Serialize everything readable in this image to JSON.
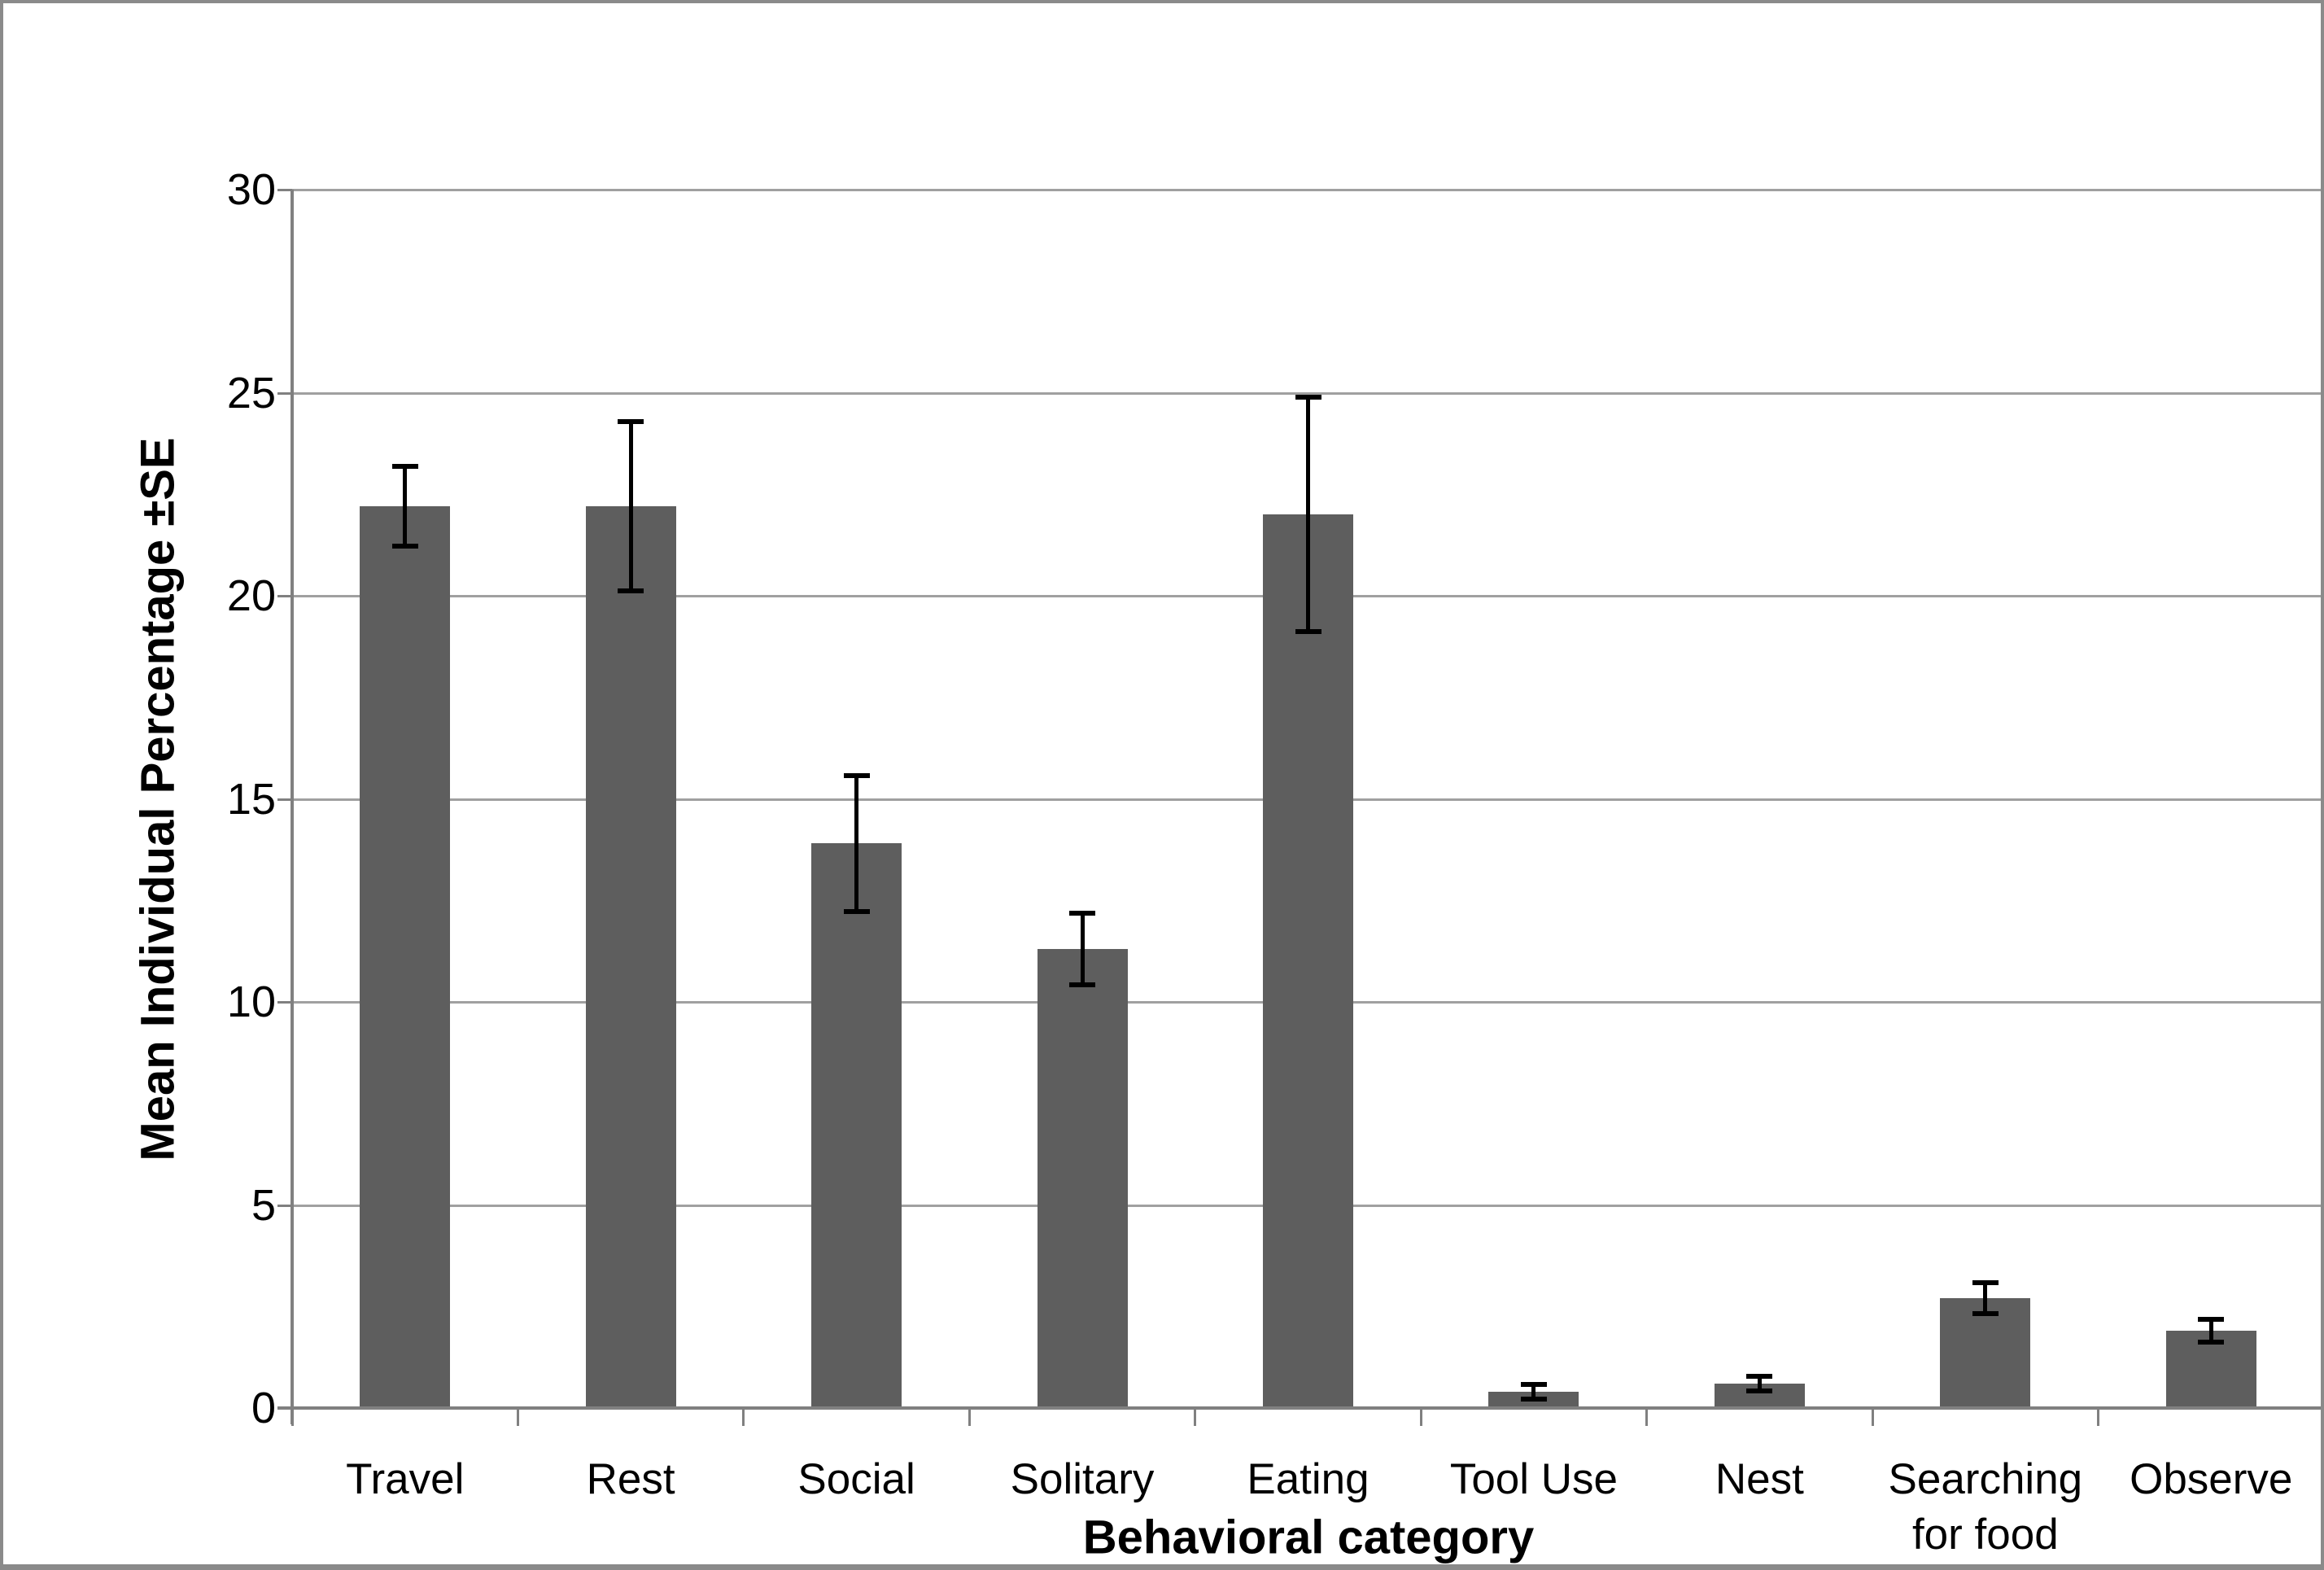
{
  "figure": {
    "background_color": "#ffffff",
    "frame_border_color": "#8a8a8a"
  },
  "chart_data": {
    "type": "bar",
    "title": "",
    "xlabel": "Behavioral category",
    "ylabel": "Mean Individual Percentage ±SE",
    "categories": [
      "Travel",
      "Rest",
      "Social",
      "Solitary",
      "Eating",
      "Tool Use",
      "Nest",
      "Searching for food",
      "Observe"
    ],
    "values": [
      22.2,
      22.2,
      13.9,
      11.3,
      22.0,
      0.4,
      0.6,
      2.7,
      1.9
    ],
    "series": [
      {
        "name": "Mean individual percentage",
        "values": [
          22.2,
          22.2,
          13.9,
          11.3,
          22.0,
          0.4,
          0.6,
          2.7,
          1.9
        ],
        "error_se": [
          1.0,
          2.1,
          1.7,
          0.9,
          2.9,
          0.2,
          0.2,
          0.4,
          0.3
        ]
      }
    ],
    "error_bars": true,
    "ylim": [
      0,
      30
    ],
    "ytick_step": 5,
    "ytick_labels": [
      "0",
      "5",
      "10",
      "15",
      "20",
      "25",
      "30"
    ],
    "grid": true,
    "legend": false,
    "legend_position": "none",
    "bar_color": "#5e5e5e",
    "gridline_color": "#a0a0a0",
    "axis_color": "#808080",
    "error_bar_color": "#000000",
    "text_color": "#000000"
  }
}
